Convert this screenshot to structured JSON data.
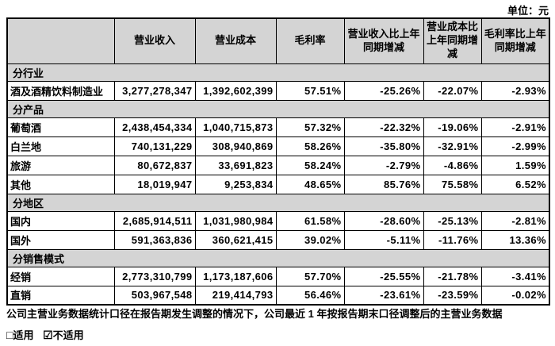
{
  "unit_label": "单位：元",
  "colors": {
    "section_header_bg": "#d4d4d4",
    "table_border": "#000000",
    "text": "#000000",
    "page_bg": "#ffffff"
  },
  "table": {
    "columns": [
      "",
      "营业收入",
      "营业成本",
      "毛利率",
      "营业收入比上年同期增减",
      "营业成本比上年同期增减",
      "毛利率比上年同期增减"
    ],
    "rows": [
      {
        "type": "section",
        "label": "分行业"
      },
      {
        "type": "data",
        "label": "酒及酒精饮料制造业",
        "values": [
          "3,277,278,347",
          "1,392,602,399",
          "57.51%",
          "-25.26%",
          "-22.07%",
          "-2.93%"
        ]
      },
      {
        "type": "section",
        "label": "分产品"
      },
      {
        "type": "data",
        "label": "葡萄酒",
        "values": [
          "2,438,454,334",
          "1,040,715,873",
          "57.32%",
          "-22.32%",
          "-19.06%",
          "-2.91%"
        ]
      },
      {
        "type": "data",
        "label": "白兰地",
        "values": [
          "740,131,229",
          "308,940,869",
          "58.26%",
          "-35.80%",
          "-32.91%",
          "-2.99%"
        ]
      },
      {
        "type": "data",
        "label": "旅游",
        "values": [
          "80,672,837",
          "33,691,823",
          "58.24%",
          "-2.79%",
          "-4.86%",
          "1.59%"
        ]
      },
      {
        "type": "data",
        "label": "其他",
        "values": [
          "18,019,947",
          "9,253,834",
          "48.65%",
          "85.76%",
          "75.58%",
          "6.52%"
        ]
      },
      {
        "type": "section",
        "label": "分地区"
      },
      {
        "type": "data",
        "label": "国内",
        "values": [
          "2,685,914,511",
          "1,031,980,984",
          "61.58%",
          "-28.60%",
          "-25.13%",
          "-2.81%"
        ]
      },
      {
        "type": "data",
        "label": "国外",
        "values": [
          "591,363,836",
          "360,621,415",
          "39.02%",
          "-5.11%",
          "-11.76%",
          "13.36%"
        ]
      },
      {
        "type": "section",
        "label": "分销售模式"
      },
      {
        "type": "data",
        "label": "经销",
        "values": [
          "2,773,310,799",
          "1,173,187,606",
          "57.70%",
          "-25.55%",
          "-21.78%",
          "-3.41%"
        ]
      },
      {
        "type": "data",
        "label": "直销",
        "values": [
          "503,967,548",
          "219,414,793",
          "56.46%",
          "-23.61%",
          "-23.59%",
          "-0.02%"
        ]
      }
    ]
  },
  "footer": {
    "note": "公司主营业务数据统计口径在报告期发生调整的情况下，公司最近 1 年按报告期末口径调整后的主营业务数据",
    "applicable": {
      "checkbox": "□",
      "label": "适用"
    },
    "not_applicable": {
      "checkbox": "☑",
      "label": "不适用"
    }
  }
}
